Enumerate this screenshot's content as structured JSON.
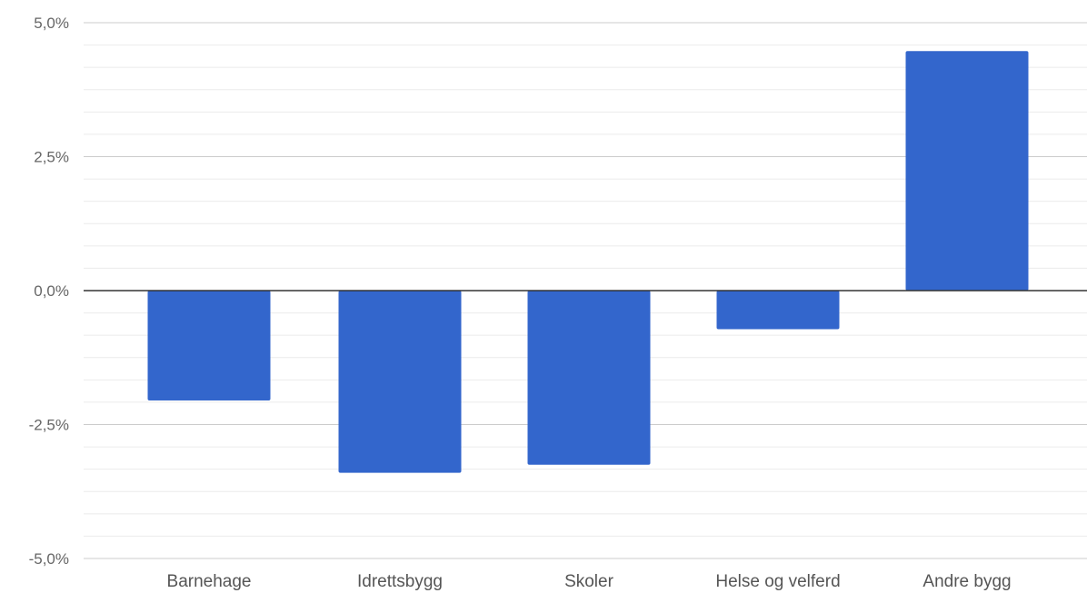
{
  "chart_data": {
    "type": "bar",
    "categories": [
      "Barnehage",
      "Idrettsbygg",
      "Skoler",
      "Helse og velferd",
      "Andre bygg"
    ],
    "values": [
      -2.05,
      -3.4,
      -3.25,
      -0.72,
      4.47
    ],
    "ylim": [
      -5.0,
      5.0
    ],
    "yticks": [
      5.0,
      2.5,
      0.0,
      -2.5,
      -5.0
    ],
    "ytick_labels": [
      "5,0%",
      "2,5%",
      "0,0%",
      "-2,5%",
      "-5,0%"
    ],
    "minor_gridlines_per_major": 6,
    "grid": true,
    "legend": "none",
    "colors": {
      "bar": "#3366cc",
      "major_grid": "#cccccc",
      "minor_grid": "#ebebeb",
      "zero_line": "#333333"
    }
  }
}
